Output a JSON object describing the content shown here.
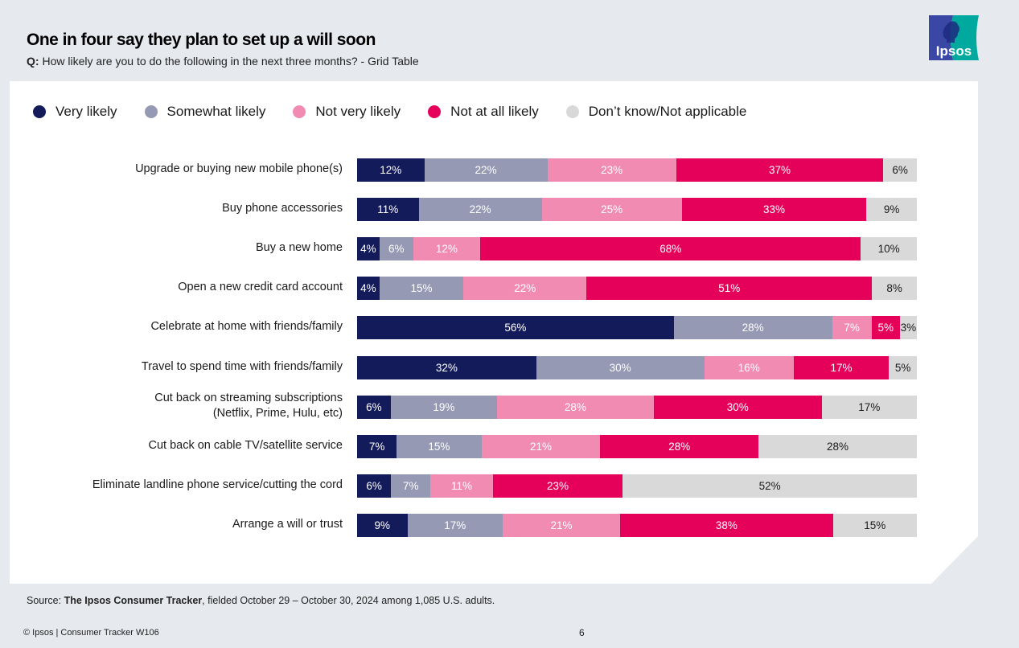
{
  "header": {
    "title": "One in four say they plan to set up a will soon",
    "question_prefix": "Q:",
    "question_text": " How likely are you to do the following in the next three months? - Grid Table",
    "logo_text": "Ipsos"
  },
  "colors": {
    "very_likely": "#141b5a",
    "somewhat_likely": "#9599b4",
    "not_very_likely": "#f28bb1",
    "not_at_all_likely": "#e5005a",
    "dont_know": "#d9d9d9",
    "logo_left": "#3b47a4",
    "logo_right": "#00a99d"
  },
  "chart_data": {
    "type": "bar",
    "orientation": "horizontal",
    "stacked": true,
    "title": "One in four say they plan to set up a will soon",
    "subtitle": "Q: How likely are you to do the following in the next three months? - Grid Table",
    "xlabel": "",
    "ylabel": "",
    "xlim": [
      0,
      100
    ],
    "unit": "%",
    "legend_position": "top",
    "categories": [
      "Upgrade or buying new mobile phone(s)",
      "Buy phone accessories",
      "Buy a new home",
      "Open a new credit card account",
      "Celebrate at home with friends/family",
      "Travel to spend time with friends/family",
      "Cut back on streaming subscriptions\n(Netflix, Prime, Hulu, etc)",
      "Cut back on cable TV/satellite service",
      "Eliminate landline phone service/cutting the cord",
      "Arrange a will or trust"
    ],
    "series": [
      {
        "name": "Very likely",
        "color": "#141b5a",
        "values": [
          12,
          11,
          4,
          4,
          56,
          32,
          6,
          7,
          6,
          9
        ]
      },
      {
        "name": "Somewhat likely",
        "color": "#9599b4",
        "values": [
          22,
          22,
          6,
          15,
          28,
          30,
          19,
          15,
          7,
          17
        ]
      },
      {
        "name": "Not very likely",
        "color": "#f28bb1",
        "values": [
          23,
          25,
          12,
          22,
          7,
          16,
          28,
          21,
          11,
          21
        ]
      },
      {
        "name": "Not at all likely",
        "color": "#e5005a",
        "values": [
          37,
          33,
          68,
          51,
          5,
          17,
          30,
          28,
          23,
          38
        ]
      },
      {
        "name": "Don’t know/Not applicable",
        "color": "#d9d9d9",
        "values": [
          6,
          9,
          10,
          8,
          3,
          5,
          17,
          28,
          52,
          15
        ]
      }
    ]
  },
  "footer": {
    "source_prefix": "Source: ",
    "source_bold": "The Ipsos Consumer Tracker",
    "source_rest": ", fielded October 29 – October 30, 2024 among 1,085 U.S. adults.",
    "copyright": "© Ipsos | Consumer Tracker W106",
    "page_number": "6"
  }
}
